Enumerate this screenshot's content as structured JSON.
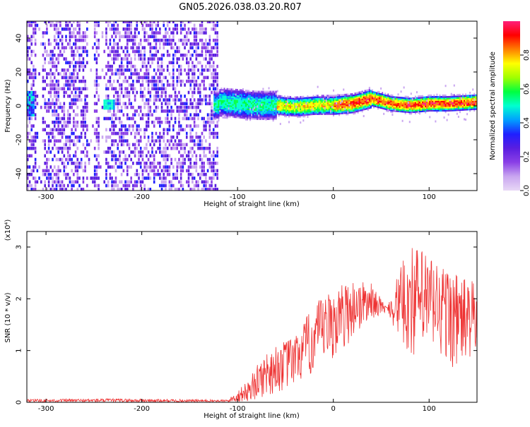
{
  "title": "GN05.2026.038.03.20.R07",
  "chart_data": [
    {
      "type": "heatmap",
      "xlabel": "Height of straight line (km)",
      "ylabel": "Frequency (Hz)",
      "xlim": [
        -320,
        150
      ],
      "ylim": [
        -50,
        50
      ],
      "xticks": [
        -300,
        -200,
        -100,
        0,
        100
      ],
      "yticks": [
        -40,
        -20,
        0,
        20,
        40
      ],
      "colorbar": {
        "label": "Normalized spectral amplitude",
        "range": [
          0,
          1
        ],
        "ticks": [
          0.0,
          0.2,
          0.4,
          0.6,
          0.8
        ],
        "tick_labels": [
          "0.0",
          "0.2",
          "0.4",
          "0.6",
          "0.8"
        ],
        "colormap": [
          "#e8d8f6",
          "#c9a6f0",
          "#8a3fe6",
          "#5a1ee0",
          "#1f1fff",
          "#00a0ff",
          "#00ffd0",
          "#00ff40",
          "#a0ff00",
          "#ffff00",
          "#ff8000",
          "#ff0000",
          "#ff1f7a"
        ]
      },
      "regions": [
        {
          "x": [
            -320,
            -120
          ],
          "description": "broadband scattered noise, amplitude mostly 0.1-0.3",
          "amplitude": 0.2
        },
        {
          "x": [
            -125,
            150
          ],
          "description": "narrow tone near 0 Hz",
          "amplitude": 0.75
        }
      ],
      "tone_center_hz": [
        [
          -120,
          2
        ],
        [
          -100,
          1
        ],
        [
          -80,
          0
        ],
        [
          -60,
          0
        ],
        [
          -40,
          -1
        ],
        [
          -20,
          0
        ],
        [
          0,
          0
        ],
        [
          20,
          1
        ],
        [
          40,
          4
        ],
        [
          60,
          1
        ],
        [
          80,
          0
        ],
        [
          100,
          1
        ],
        [
          120,
          1
        ],
        [
          150,
          2
        ]
      ]
    },
    {
      "type": "line",
      "xlabel": "Height of straight line (km)",
      "ylabel": "SNR (10 * v/v)",
      "yscale_label": "(x10⁴)",
      "xlim": [
        -320,
        150
      ],
      "ylim": [
        0,
        3.3
      ],
      "xticks": [
        -300,
        -200,
        -100,
        0,
        100
      ],
      "yticks": [
        0,
        1,
        2,
        3
      ],
      "color": "#ee3333",
      "envelope": [
        {
          "x": -320,
          "lo": 0.0,
          "hi": 0.06
        },
        {
          "x": -230,
          "lo": 0.0,
          "hi": 0.07
        },
        {
          "x": -110,
          "lo": 0.0,
          "hi": 0.05
        },
        {
          "x": -90,
          "lo": 0.0,
          "hi": 0.4
        },
        {
          "x": -70,
          "lo": 0.1,
          "hi": 1.0
        },
        {
          "x": -40,
          "lo": 0.3,
          "hi": 1.3
        },
        {
          "x": -20,
          "lo": 0.5,
          "hi": 1.9
        },
        {
          "x": 0,
          "lo": 0.8,
          "hi": 2.2
        },
        {
          "x": 20,
          "lo": 1.2,
          "hi": 2.4
        },
        {
          "x": 40,
          "lo": 1.6,
          "hi": 2.3
        },
        {
          "x": 55,
          "lo": 1.75,
          "hi": 1.85
        },
        {
          "x": 80,
          "lo": 0.8,
          "hi": 3.1
        },
        {
          "x": 100,
          "lo": 0.9,
          "hi": 2.9
        },
        {
          "x": 130,
          "lo": 0.6,
          "hi": 2.5
        },
        {
          "x": 150,
          "lo": 0.9,
          "hi": 2.3
        }
      ]
    }
  ]
}
